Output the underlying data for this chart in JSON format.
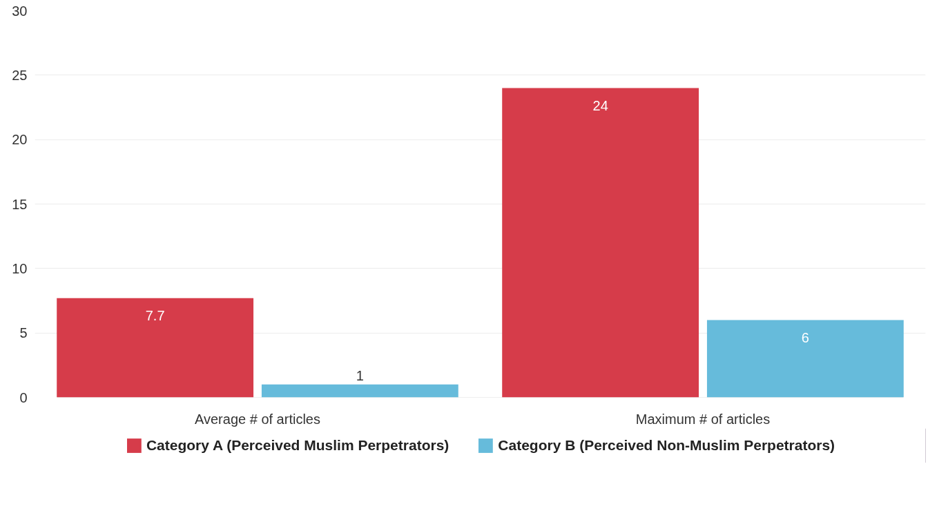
{
  "chart_data": {
    "type": "bar",
    "categories": [
      "Average # of articles",
      "Maximum # of articles"
    ],
    "series": [
      {
        "name": "Category A (Perceived Muslim Perpetrators)",
        "color": "#d63c4a",
        "values": [
          7.7,
          24
        ]
      },
      {
        "name": "Category B (Perceived Non-Muslim Perpetrators)",
        "color": "#66bbdb",
        "values": [
          1,
          6
        ]
      }
    ],
    "ylim": [
      0,
      30
    ],
    "yticks": [
      0,
      5,
      10,
      15,
      20,
      25,
      30
    ],
    "grid": "y",
    "legend": "bottom",
    "data_labels": true
  }
}
